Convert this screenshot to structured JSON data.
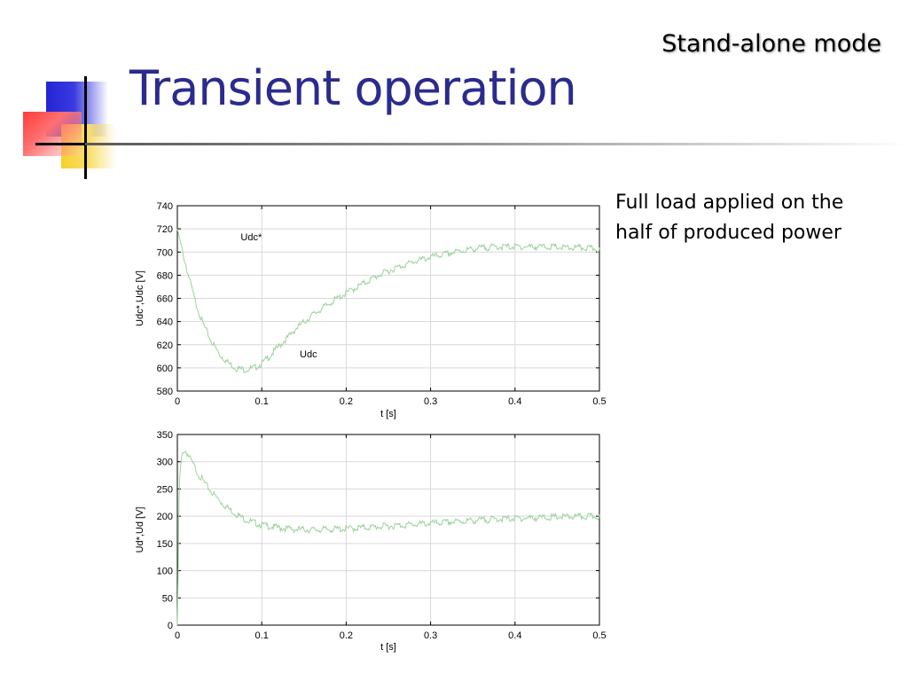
{
  "slide": {
    "title": "Transient operation",
    "subtitle": "Stand-alone mode",
    "note_lines": [
      "Full load applied on the",
      "half of produced power"
    ]
  },
  "colors": {
    "title": "#2b2b8e",
    "trace": "#9bd39b",
    "grid": "#d9d9d9"
  },
  "chart_data": [
    {
      "type": "line",
      "xlabel": "t [s]",
      "ylabel": "Udc*,Udc [V]",
      "xlim": [
        0,
        0.5
      ],
      "ylim": [
        580,
        740
      ],
      "xticks": [
        0,
        0.1,
        0.2,
        0.3,
        0.4,
        0.5
      ],
      "yticks": [
        580,
        600,
        620,
        640,
        660,
        680,
        700,
        720,
        740
      ],
      "xtick_labels": [
        "0",
        "0.1",
        "0.2",
        "0.3",
        "0.4",
        "0.5"
      ],
      "ytick_labels": [
        "580",
        "600",
        "620",
        "640",
        "660",
        "680",
        "700",
        "720",
        "740"
      ],
      "grid": true,
      "annotations": [
        {
          "text": "Udc*",
          "x": 0.075,
          "y": 710
        },
        {
          "text": "Udc",
          "x": 0.145,
          "y": 609
        }
      ],
      "series": [
        {
          "x": [
            0,
            0.005,
            0.01,
            0.02,
            0.03,
            0.04,
            0.05,
            0.06,
            0.07,
            0.08,
            0.09,
            0.1,
            0.11,
            0.12,
            0.13,
            0.14,
            0.15,
            0.16,
            0.17,
            0.18,
            0.2,
            0.22,
            0.24,
            0.26,
            0.28,
            0.3,
            0.32,
            0.34,
            0.36,
            0.38,
            0.4,
            0.42,
            0.44,
            0.46,
            0.48,
            0.5
          ],
          "values": [
            720,
            705,
            690,
            662,
            640,
            625,
            613,
            606,
            601,
            600,
            601,
            605,
            612,
            620,
            627,
            635,
            641,
            647,
            652,
            657,
            666,
            674,
            682,
            688,
            693,
            697,
            700,
            703,
            705,
            706,
            706,
            706,
            706,
            705,
            705,
            704
          ]
        }
      ]
    },
    {
      "type": "line",
      "xlabel": "t [s]",
      "ylabel": "Ud*,Ud [V]",
      "xlim": [
        0,
        0.5
      ],
      "ylim": [
        0,
        350
      ],
      "xticks": [
        0,
        0.1,
        0.2,
        0.3,
        0.4,
        0.5
      ],
      "yticks": [
        0,
        50,
        100,
        150,
        200,
        250,
        300,
        350
      ],
      "xtick_labels": [
        "0",
        "0.1",
        "0.2",
        "0.3",
        "0.4",
        "0.5"
      ],
      "ytick_labels": [
        "0",
        "50",
        "100",
        "150",
        "200",
        "250",
        "300",
        "350"
      ],
      "grid": true,
      "series": [
        {
          "x": [
            0,
            0.001,
            0.002,
            0.003,
            0.005,
            0.008,
            0.012,
            0.018,
            0.025,
            0.035,
            0.045,
            0.055,
            0.065,
            0.075,
            0.085,
            0.1,
            0.12,
            0.14,
            0.16,
            0.18,
            0.2,
            0.22,
            0.24,
            0.26,
            0.28,
            0.3,
            0.32,
            0.34,
            0.36,
            0.38,
            0.4,
            0.42,
            0.44,
            0.46,
            0.48,
            0.5
          ],
          "values": [
            0,
            100,
            230,
            280,
            310,
            325,
            318,
            300,
            280,
            258,
            240,
            224,
            212,
            202,
            194,
            187,
            182,
            179,
            178,
            179,
            180,
            182,
            184,
            186,
            188,
            190,
            192,
            194,
            196,
            198,
            199,
            200,
            201,
            202,
            202,
            203
          ]
        }
      ]
    }
  ]
}
